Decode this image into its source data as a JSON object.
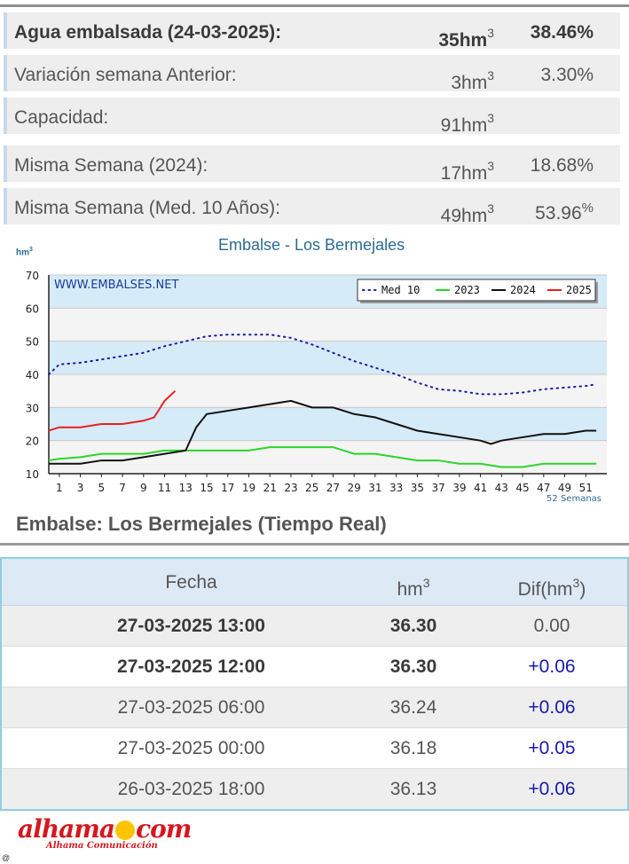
{
  "stats": {
    "rows": [
      {
        "label": "Agua embalsada (24-03-2025):",
        "value": "35",
        "unit": "hm",
        "exp": "3",
        "pct": "38.46%"
      },
      {
        "label": "Variación semana Anterior:",
        "value": "3",
        "unit": "hm",
        "exp": "3",
        "pct": "3.30%"
      },
      {
        "label": "Capacidad:",
        "value": "91",
        "unit": "hm",
        "exp": "3",
        "pct": ""
      },
      {
        "label": "Misma Semana (2024):",
        "value": "17",
        "unit": "hm",
        "exp": "3",
        "pct": "18.68%"
      },
      {
        "label": "Misma Semana (Med. 10 Años):",
        "value": "49",
        "unit": "hm",
        "exp": "3",
        "pct": "53.96"
      }
    ],
    "last_pct_sup": "%"
  },
  "chart_data": {
    "type": "line",
    "title": "Embalse - Los Bermejales",
    "watermark": "WWW.EMBALSES.NET",
    "ylabel_unit": "hm",
    "ylabel_exp": "3",
    "xlabel": "52 Semanas",
    "ylim": [
      10,
      70
    ],
    "yticks": [
      10,
      20,
      30,
      40,
      50,
      60,
      70
    ],
    "xlim": [
      0,
      53
    ],
    "xticks": [
      1,
      3,
      5,
      7,
      9,
      11,
      13,
      15,
      17,
      19,
      21,
      23,
      25,
      27,
      29,
      31,
      33,
      35,
      37,
      39,
      41,
      43,
      45,
      47,
      49,
      51
    ],
    "legend_position": "top-right",
    "colors": {
      "Med 10": "#1a1aa8",
      "2023": "#2ad62a",
      "2024": "#111111",
      "2025": "#e82020"
    },
    "series": [
      {
        "name": "Med 10",
        "style": "dotted",
        "x": [
          0,
          1,
          3,
          5,
          7,
          9,
          11,
          13,
          15,
          17,
          19,
          21,
          23,
          25,
          27,
          29,
          31,
          33,
          35,
          37,
          39,
          41,
          43,
          45,
          47,
          49,
          51,
          52
        ],
        "values": [
          40,
          43,
          43.5,
          44.5,
          45.5,
          46.5,
          48.5,
          50,
          51.5,
          52,
          52,
          52,
          51,
          49,
          46.5,
          44,
          42,
          40,
          37.5,
          35.5,
          35,
          34,
          34,
          34.5,
          35.5,
          36,
          36.5,
          37
        ]
      },
      {
        "name": "2023",
        "style": "solid",
        "x": [
          0,
          1,
          3,
          5,
          7,
          9,
          11,
          13,
          15,
          17,
          19,
          21,
          23,
          25,
          27,
          29,
          31,
          33,
          35,
          37,
          39,
          41,
          43,
          45,
          47,
          49,
          51,
          52
        ],
        "values": [
          14,
          14.5,
          15,
          16,
          16,
          16,
          17,
          17,
          17,
          17,
          17,
          18,
          18,
          18,
          18,
          16,
          16,
          15,
          14,
          14,
          13,
          13,
          12,
          12,
          13,
          13,
          13,
          13
        ]
      },
      {
        "name": "2024",
        "style": "solid",
        "x": [
          0,
          1,
          3,
          5,
          7,
          9,
          11,
          13,
          14,
          15,
          17,
          19,
          21,
          23,
          25,
          27,
          29,
          31,
          33,
          35,
          37,
          39,
          41,
          42,
          43,
          45,
          47,
          49,
          51,
          52
        ],
        "values": [
          13,
          13,
          13,
          14,
          14,
          15,
          16,
          17,
          24,
          28,
          29,
          30,
          31,
          32,
          30,
          30,
          28,
          27,
          25,
          23,
          22,
          21,
          20,
          19,
          20,
          21,
          22,
          22,
          23,
          23
        ]
      },
      {
        "name": "2025",
        "style": "solid",
        "x": [
          0,
          1,
          3,
          5,
          7,
          9,
          10,
          11,
          12
        ],
        "values": [
          23,
          24,
          24,
          25,
          25,
          26,
          27,
          32,
          35
        ]
      }
    ]
  },
  "realtime": {
    "title": "Embalse: Los Bermejales (Tiempo Real)",
    "headers": {
      "fecha": "Fecha",
      "hm": "hm",
      "hm_exp": "3",
      "dif": "Dif(hm",
      "dif_exp": "3",
      "dif_close": ")"
    },
    "rows": [
      {
        "fecha": "27-03-2025 13:00",
        "hm": "36.30",
        "dif": "0.00"
      },
      {
        "fecha": "27-03-2025 12:00",
        "hm": "36.30",
        "dif": "+0.06"
      },
      {
        "fecha": "27-03-2025 06:00",
        "hm": "36.24",
        "dif": "+0.06"
      },
      {
        "fecha": "27-03-2025 00:00",
        "hm": "36.18",
        "dif": "+0.05"
      },
      {
        "fecha": "26-03-2025 18:00",
        "hm": "36.13",
        "dif": "+0.06"
      }
    ]
  },
  "footer": {
    "logo_left": "alhama",
    "logo_right": "com",
    "tagline": "Alhama Comunicación",
    "at_symbol": "@"
  }
}
